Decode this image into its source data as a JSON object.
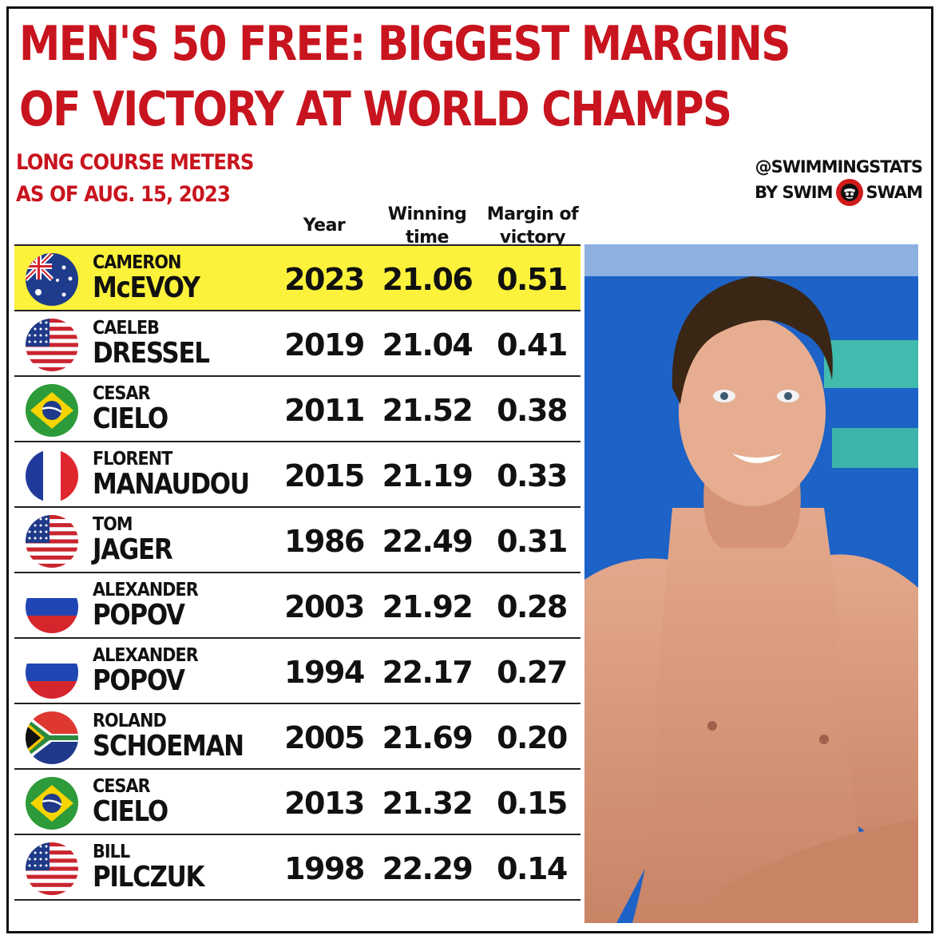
{
  "chart_data": {
    "type": "table",
    "title": "MEN'S 50 FREE: BIGGEST MARGINS OF VICTORY AT WORLD CHAMPS",
    "subtitle": [
      "LONG COURSE METERS",
      "AS OF AUG. 15, 2023"
    ],
    "columns": [
      "Year",
      "Winning time",
      "Margin of victory"
    ],
    "rows": [
      {
        "first": "CAMERON",
        "last": "McEVOY",
        "country": "Australia",
        "year": "2023",
        "time": "21.06",
        "margin": "0.51",
        "highlight": true
      },
      {
        "first": "CAELEB",
        "last": "DRESSEL",
        "country": "United States",
        "year": "2019",
        "time": "21.04",
        "margin": "0.41"
      },
      {
        "first": "CESAR",
        "last": "CIELO",
        "country": "Brazil",
        "year": "2011",
        "time": "21.52",
        "margin": "0.38"
      },
      {
        "first": "FLORENT",
        "last": "MANAUDOU",
        "country": "France",
        "year": "2015",
        "time": "21.19",
        "margin": "0.33"
      },
      {
        "first": "TOM",
        "last": "JAGER",
        "country": "United States",
        "year": "1986",
        "time": "22.49",
        "margin": "0.31"
      },
      {
        "first": "ALEXANDER",
        "last": "POPOV",
        "country": "Russia",
        "year": "2003",
        "time": "21.92",
        "margin": "0.28"
      },
      {
        "first": "ALEXANDER",
        "last": "POPOV",
        "country": "Russia",
        "year": "1994",
        "time": "22.17",
        "margin": "0.27"
      },
      {
        "first": "ROLAND",
        "last": "SCHOEMAN",
        "country": "South Africa",
        "year": "2005",
        "time": "21.69",
        "margin": "0.20"
      },
      {
        "first": "CESAR",
        "last": "CIELO",
        "country": "Brazil",
        "year": "2013",
        "time": "21.32",
        "margin": "0.15"
      },
      {
        "first": "BILL",
        "last": "PILCZUK",
        "country": "United States",
        "year": "1998",
        "time": "22.29",
        "margin": "0.14"
      }
    ]
  },
  "header": {
    "title_line1": "MEN'S 50 FREE: BIGGEST MARGINS",
    "title_line2": "OF VICTORY AT WORLD CHAMPS",
    "subtitle_line1": "LONG COURSE METERS",
    "subtitle_line2": "AS OF AUG. 15, 2023"
  },
  "columns": {
    "year": "Year",
    "time_line1": "Winning",
    "time_line2": "time",
    "margin_line1": "Margin of",
    "margin_line2": "victory"
  },
  "brand": {
    "handle": "@SWIMMINGSTATS",
    "by_left": "BY SWIM",
    "by_right": "SWAM",
    "logo_icon": "swimswam-logo-icon"
  },
  "colors": {
    "title_red": "#c8141e",
    "highlight_yellow": "#fdf23b",
    "text_dark": "#111111"
  },
  "photo": {
    "icon": "swimmer-photo"
  }
}
